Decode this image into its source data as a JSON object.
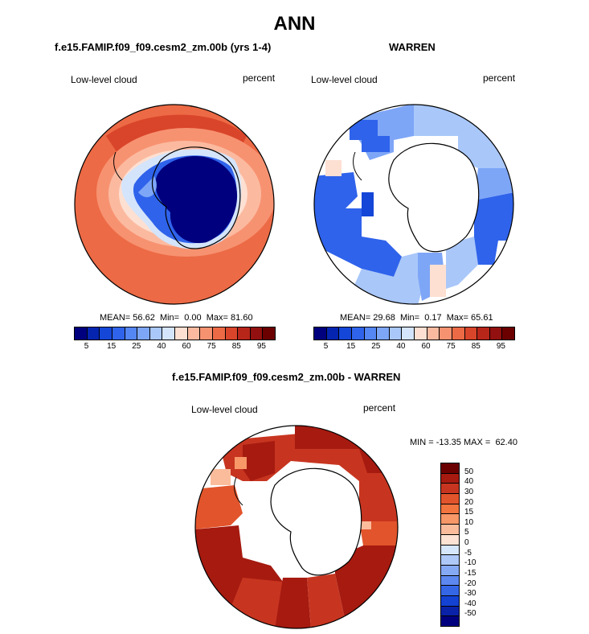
{
  "title": "ANN",
  "panels": {
    "model": {
      "title": "f.e15.FAMIP.f09_f09.cesm2_zm.00b (yrs 1-4)",
      "left_label": "Low-level cloud",
      "right_label": "percent",
      "mean": "56.62",
      "min": "0.00",
      "max": "81.60"
    },
    "obs": {
      "title": "WARREN",
      "left_label": "Low-level cloud",
      "right_label": "percent",
      "mean": "29.68",
      "min": "0.17",
      "max": "65.61"
    },
    "diff": {
      "title": "f.e15.FAMIP.f09_f09.cesm2_zm.00b - WARREN",
      "left_label": "Low-level cloud",
      "right_label": "percent",
      "min": "-13.35",
      "max": "62.40"
    }
  },
  "labels": {
    "mean": "MEAN=",
    "min": "Min=",
    "max": "Max=",
    "min_eq": "MIN =",
    "max_eq": "MAX ="
  },
  "chart_data": [
    {
      "type": "heatmap",
      "projection": "south-polar-stereographic",
      "panel": "model",
      "colorbar": {
        "levels": [
          5,
          10,
          15,
          20,
          25,
          30,
          40,
          50,
          60,
          65,
          75,
          80,
          85,
          90,
          95
        ],
        "tick_labels": [
          "5",
          "15",
          "25",
          "40",
          "60",
          "75",
          "85",
          "95"
        ],
        "colors": [
          "#00007f",
          "#0525b0",
          "#1446d8",
          "#2f63eb",
          "#5486f4",
          "#7ea6f7",
          "#a9c7f9",
          "#d4e4fb",
          "#fde0d2",
          "#fbbaa0",
          "#f79271",
          "#ec6a45",
          "#d9452a",
          "#b8261a",
          "#92100f",
          "#6b0000"
        ]
      },
      "stats": {
        "mean": 56.62,
        "min": 0.0,
        "max": 81.6
      }
    },
    {
      "type": "heatmap",
      "projection": "south-polar-stereographic",
      "panel": "obs",
      "colorbar": {
        "levels": [
          5,
          10,
          15,
          20,
          25,
          30,
          40,
          50,
          60,
          65,
          75,
          80,
          85,
          90,
          95
        ],
        "tick_labels": [
          "5",
          "15",
          "25",
          "40",
          "60",
          "75",
          "85",
          "95"
        ],
        "colors": [
          "#00007f",
          "#0525b0",
          "#1446d8",
          "#2f63eb",
          "#5486f4",
          "#7ea6f7",
          "#a9c7f9",
          "#d4e4fb",
          "#fde0d2",
          "#fbbaa0",
          "#f79271",
          "#ec6a45",
          "#d9452a",
          "#b8261a",
          "#92100f",
          "#6b0000"
        ]
      },
      "stats": {
        "mean": 29.68,
        "min": 0.17,
        "max": 65.61
      }
    },
    {
      "type": "heatmap",
      "projection": "south-polar-stereographic",
      "panel": "diff",
      "colorbar": {
        "levels": [
          50,
          40,
          30,
          20,
          15,
          10,
          5,
          0,
          -5,
          -10,
          -15,
          -20,
          -30,
          -40,
          -50
        ],
        "tick_labels": [
          "50",
          "40",
          "30",
          "20",
          "15",
          "10",
          "5",
          "0",
          "-5",
          "-10",
          "-15",
          "-20",
          "-30",
          "-40",
          "-50"
        ],
        "colors": [
          "#6b0000",
          "#a61a10",
          "#c73520",
          "#e2542b",
          "#f2743f",
          "#f89768",
          "#fbbc9c",
          "#fde3d4",
          "#d6e6fb",
          "#aec8f8",
          "#86a9f5",
          "#5d88f0",
          "#3566e6",
          "#1442d3",
          "#0a22a8",
          "#00007f"
        ]
      },
      "stats": {
        "min": -13.35,
        "max": 62.4
      }
    }
  ]
}
